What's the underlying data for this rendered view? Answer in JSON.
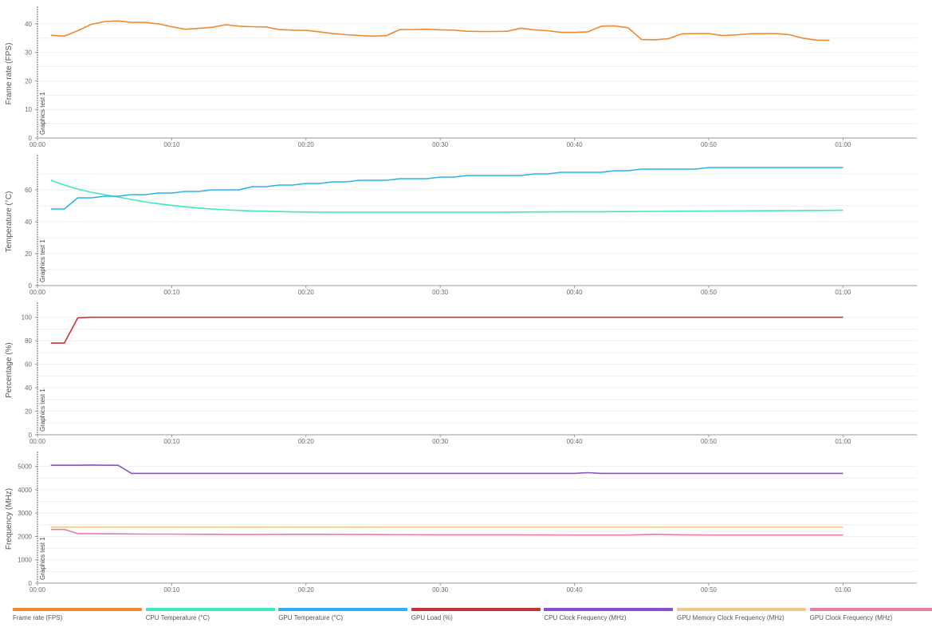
{
  "chart_data": [
    {
      "type": "line",
      "ylabel": "Frame rate (FPS)",
      "ylim": [
        0,
        45
      ],
      "yticks": [
        0,
        10,
        20,
        30,
        40
      ],
      "marker_label": "Graphics test 1",
      "series": [
        {
          "name": "Frame rate (FPS)",
          "color": "#f0882e",
          "x": [
            1,
            2,
            3,
            4,
            5,
            6,
            7,
            8,
            9,
            10,
            11,
            12,
            13,
            14,
            15,
            16,
            17,
            18,
            19,
            20,
            21,
            22,
            23,
            24,
            25,
            26,
            27,
            28,
            29,
            30,
            31,
            32,
            33,
            34,
            35,
            36,
            37,
            38,
            39,
            40,
            41,
            42,
            43,
            44,
            45,
            46,
            47,
            48,
            49,
            50,
            51,
            52,
            53,
            54,
            55,
            56,
            57,
            58,
            59
          ],
          "values": [
            36,
            35.7,
            37.6,
            39.8,
            40.8,
            41,
            40.5,
            40.5,
            40,
            39,
            38.1,
            38.4,
            38.8,
            39.7,
            39.2,
            39,
            38.9,
            38,
            37.8,
            37.7,
            37.2,
            36.6,
            36.2,
            35.9,
            35.7,
            35.9,
            38,
            38,
            38.1,
            37.9,
            37.8,
            37.4,
            37.3,
            37.3,
            37.4,
            38.5,
            37.9,
            37.6,
            37,
            37,
            37.2,
            39.2,
            39.3,
            38.6,
            34.5,
            34.4,
            34.8,
            36.5,
            36.6,
            36.6,
            35.9,
            36.1,
            36.5,
            36.6,
            36.6,
            36.2,
            35,
            34.3,
            34.2
          ]
        }
      ]
    },
    {
      "type": "line",
      "ylabel": "Temperature (°C)",
      "ylim": [
        0,
        80
      ],
      "yticks": [
        0,
        20,
        40,
        60
      ],
      "marker_label": "Graphics test 1",
      "series": [
        {
          "name": "CPU Temperature (°C)",
          "color": "#3de8c3",
          "x": [
            1,
            2,
            3,
            4,
            5,
            6,
            7,
            8,
            9,
            10,
            11,
            12,
            13,
            14,
            15,
            16,
            17,
            18,
            19,
            20,
            22,
            24,
            26,
            28,
            30,
            32,
            34,
            36,
            38,
            40,
            42,
            44,
            46,
            48,
            50,
            52,
            54,
            56,
            58,
            60
          ],
          "values": [
            66,
            63,
            60.5,
            58.5,
            57,
            55.5,
            54,
            52.5,
            51.3,
            50.3,
            49.4,
            48.6,
            48,
            47.5,
            47.1,
            46.8,
            46.6,
            46.4,
            46.2,
            46.1,
            46,
            46,
            46,
            46,
            46,
            46,
            46,
            46.1,
            46.2,
            46.3,
            46.3,
            46.4,
            46.5,
            46.6,
            46.7,
            46.8,
            46.9,
            47,
            47.1,
            47.2
          ]
        },
        {
          "name": "GPU Temperature (°C)",
          "color": "#28b3ee",
          "x": [
            1,
            2,
            3,
            4,
            5,
            6,
            7,
            8,
            9,
            10,
            11,
            12,
            13,
            14,
            15,
            16,
            17,
            18,
            19,
            20,
            21,
            22,
            23,
            24,
            25,
            26,
            27,
            28,
            29,
            30,
            31,
            32,
            33,
            34,
            35,
            36,
            37,
            38,
            39,
            40,
            41,
            42,
            43,
            44,
            45,
            46,
            47,
            48,
            49,
            50,
            51,
            52,
            53,
            54,
            55,
            56,
            57,
            58,
            59,
            60
          ],
          "values": [
            48,
            48,
            55,
            55,
            56,
            56,
            57,
            57,
            58,
            58,
            59,
            59,
            60,
            60,
            60,
            62,
            62,
            63,
            63,
            64,
            64,
            65,
            65,
            66,
            66,
            66,
            67,
            67,
            67,
            68,
            68,
            69,
            69,
            69,
            69,
            69,
            70,
            70,
            71,
            71,
            71,
            71,
            72,
            72,
            73,
            73,
            73,
            73,
            73,
            74,
            74,
            74,
            74,
            74,
            74,
            74,
            74,
            74,
            74,
            74
          ]
        }
      ]
    },
    {
      "type": "line",
      "ylabel": "Percentage (%)",
      "ylim": [
        0,
        110
      ],
      "yticks": [
        0,
        20,
        40,
        60,
        80,
        100
      ],
      "marker_label": "Graphics test 1",
      "series": [
        {
          "name": "GPU Load (%)",
          "color": "#c9303a",
          "x": [
            1,
            2,
            3,
            4,
            5,
            10,
            20,
            30,
            40,
            50,
            60
          ],
          "values": [
            78,
            78,
            99.5,
            100,
            100,
            100,
            100,
            100,
            100,
            100,
            100
          ]
        }
      ]
    },
    {
      "type": "line",
      "ylabel": "Frequency (MHz)",
      "ylim": [
        0,
        5500
      ],
      "yticks": [
        0,
        1000,
        2000,
        3000,
        4000,
        5000
      ],
      "marker_label": "Graphics test 1",
      "series": [
        {
          "name": "CPU Clock Frequency (MHz)",
          "color": "#8a4fcf",
          "x": [
            1,
            2,
            3,
            4,
            5,
            6,
            7,
            10,
            20,
            30,
            40,
            41,
            42,
            50,
            55,
            60
          ],
          "values": [
            5050,
            5050,
            5050,
            5060,
            5050,
            5050,
            4700,
            4700,
            4700,
            4700,
            4700,
            4730,
            4700,
            4700,
            4700,
            4700
          ]
        },
        {
          "name": "GPU Memory Clock Frequency (MHz)",
          "color": "#edc88a",
          "x": [
            1,
            10,
            20,
            30,
            40,
            50,
            60
          ],
          "values": [
            2400,
            2400,
            2400,
            2400,
            2400,
            2400,
            2400
          ]
        },
        {
          "name": "GPU Clock Frequency (MHz)",
          "color": "#e57ea8",
          "x": [
            1,
            2,
            3,
            4,
            5,
            6,
            8,
            10,
            15,
            20,
            25,
            30,
            35,
            40,
            42,
            44,
            46,
            48,
            50,
            55,
            60
          ],
          "values": [
            2300,
            2300,
            2120,
            2120,
            2110,
            2110,
            2100,
            2100,
            2080,
            2090,
            2080,
            2070,
            2070,
            2060,
            2060,
            2060,
            2090,
            2070,
            2060,
            2060,
            2060
          ]
        }
      ]
    }
  ],
  "x_axis": {
    "ticks": [
      0,
      10,
      20,
      30,
      40,
      50,
      60
    ],
    "tick_labels": [
      "00:00",
      "00:10",
      "00:20",
      "00:30",
      "00:40",
      "00:50",
      "01:00"
    ],
    "xlim": [
      0,
      65.5
    ]
  },
  "legend": [
    {
      "label": "Frame rate (FPS)",
      "color": "#f0882e"
    },
    {
      "label": "CPU Temperature (°C)",
      "color": "#3de8c3"
    },
    {
      "label": "GPU Temperature (°C)",
      "color": "#28b3ee"
    },
    {
      "label": "GPU Load (%)",
      "color": "#c9303a"
    },
    {
      "label": "CPU Clock Frequency (MHz)",
      "color": "#8a4fcf"
    },
    {
      "label": "GPU Memory Clock Frequency (MHz)",
      "color": "#edc88a"
    },
    {
      "label": "GPU Clock Frequency (MHz)",
      "color": "#e57ea8"
    }
  ]
}
